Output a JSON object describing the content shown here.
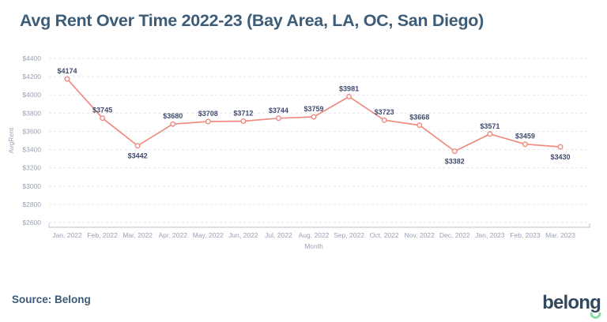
{
  "page": {
    "title": "Avg Rent Over Time 2022-23 (Bay Area, LA, OC, San Diego)",
    "source_label": "Source: Belong",
    "logo_text": "belong"
  },
  "chart_data": {
    "type": "line",
    "title": "Avg Rent Over Time 2022-23 (Bay Area, LA, OC, San Diego)",
    "xlabel": "Month",
    "ylabel": "AvgRent",
    "categories": [
      "Jan, 2022",
      "Feb, 2022",
      "Mar, 2022",
      "Apr, 2022",
      "May, 2022",
      "Jun, 2022",
      "Jul, 2022",
      "Aug, 2022",
      "Sep, 2022",
      "Oct, 2022",
      "Nov, 2022",
      "Dec, 2022",
      "Jan, 2023",
      "Feb, 2023",
      "Mar, 2023"
    ],
    "values": [
      4174,
      3745,
      3442,
      3680,
      3708,
      3712,
      3744,
      3759,
      3981,
      3723,
      3668,
      3382,
      3571,
      3459,
      3430
    ],
    "point_labels": [
      "$4174",
      "$3745",
      "$3442",
      "$3680",
      "$3708",
      "$3712",
      "$3744",
      "$3759",
      "$3981",
      "$3723",
      "$3668",
      "$3382",
      "$3571",
      "$3459",
      "$3430"
    ],
    "label_below_indices": [
      2,
      11,
      14
    ],
    "yticks": [
      2600,
      2800,
      3000,
      3200,
      3400,
      3600,
      3800,
      4000,
      4200,
      4400
    ],
    "ytick_labels": [
      "$2600",
      "$2800",
      "$3000",
      "$3200",
      "$3400",
      "$3600",
      "$3800",
      "$4000",
      "$4200",
      "$4400"
    ],
    "ylim": [
      2600,
      4400
    ],
    "grid": "horizontal-dashed",
    "legend": "none",
    "colors": {
      "line": "#ef8b7f",
      "marker_fill": "#ffffff",
      "point_label": "#3f4b6e",
      "tick_label": "#9aa1b5",
      "grid": "#e5e7ee",
      "axis": "#c9cdd9",
      "title": "#3d5c78",
      "logo_navy": "#33485c",
      "logo_green": "#7ddfa1"
    }
  }
}
